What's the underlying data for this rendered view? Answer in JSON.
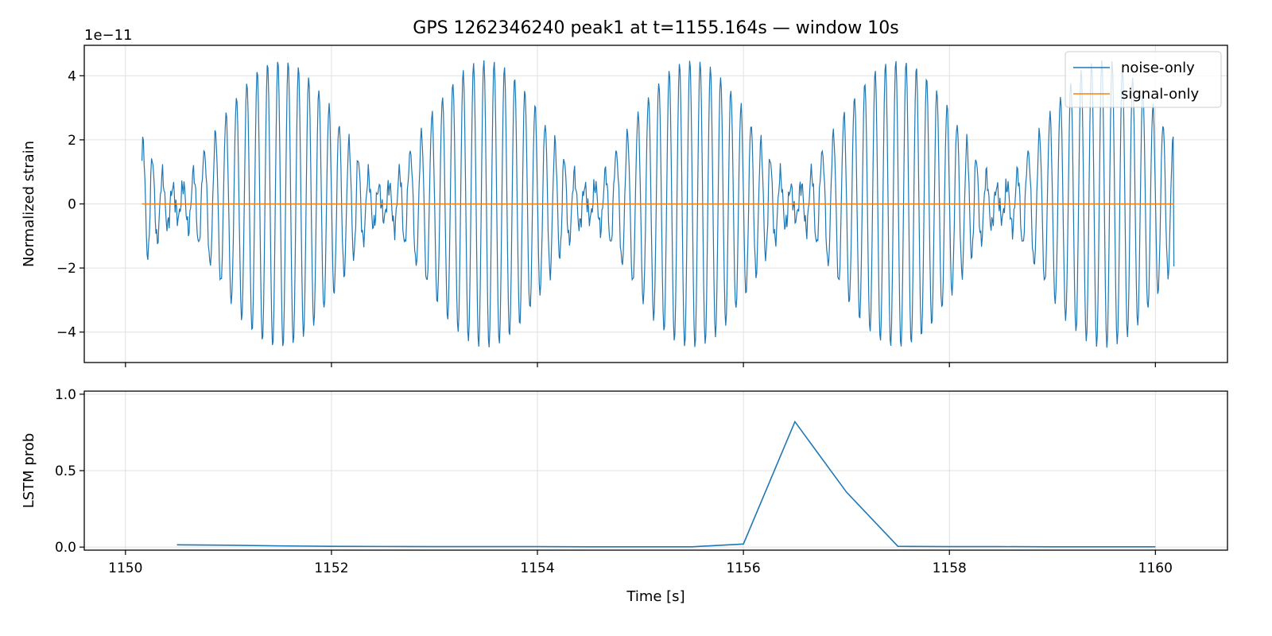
{
  "chart_data": [
    {
      "type": "line",
      "title": "GPS 1262346240 peak1 at t=1155.164s — window 10s",
      "ylabel": "Normalized strain",
      "offset_text": "1e−11",
      "xlim": [
        1149.6,
        1160.7
      ],
      "ylim": [
        -4.95,
        4.95
      ],
      "x_ticks": [
        1150,
        1152,
        1154,
        1156,
        1158,
        1160
      ],
      "y_ticks": [
        -4,
        -2,
        0,
        2,
        4
      ],
      "y_tick_labels": [
        "−4",
        "−2",
        "0",
        "2",
        "4"
      ],
      "grid": true,
      "legend_position": "top-right",
      "series": [
        {
          "name": "noise-only",
          "color": "#1f77b4",
          "x_range": [
            1150.16,
            1160.18
          ],
          "samples": 1400,
          "envelope_peaks": [
            1151.5,
            1153.5,
            1155.5,
            1157.5,
            1159.5
          ],
          "envelope_troughs": [
            1150.5,
            1152.5,
            1154.5,
            1156.5,
            1158.5
          ],
          "max_amplitude": 4.5,
          "carrier_frequency_hz": 10,
          "start_value": 1.5,
          "end_value": -1.95
        },
        {
          "name": "signal-only",
          "color": "#ff7f0e",
          "x": [
            1150.16,
            1160.18
          ],
          "y": [
            0,
            0
          ]
        }
      ]
    },
    {
      "type": "line",
      "xlabel": "Time [s]",
      "ylabel": "LSTM prob",
      "xlim": [
        1149.6,
        1160.7
      ],
      "ylim": [
        -0.02,
        1.02
      ],
      "x_ticks": [
        1150,
        1152,
        1154,
        1156,
        1158,
        1160
      ],
      "x_tick_labels": [
        "1150",
        "1152",
        "1154",
        "1156",
        "1158",
        "1160"
      ],
      "y_ticks": [
        0.0,
        0.5,
        1.0
      ],
      "y_tick_labels": [
        "0.0",
        "0.5",
        "1.0"
      ],
      "grid": true,
      "series": [
        {
          "color": "#1f77b4",
          "x": [
            1150.5,
            1151.0,
            1151.5,
            1152.0,
            1152.5,
            1153.0,
            1153.5,
            1154.0,
            1154.5,
            1155.0,
            1155.5,
            1156.0,
            1156.5,
            1157.0,
            1157.5,
            1158.0,
            1158.5,
            1159.0,
            1159.5,
            1160.0
          ],
          "y": [
            0.015,
            0.012,
            0.008,
            0.005,
            0.004,
            0.003,
            0.003,
            0.003,
            0.002,
            0.002,
            0.002,
            0.02,
            0.82,
            0.36,
            0.005,
            0.003,
            0.003,
            0.002,
            0.002,
            0.002
          ]
        }
      ]
    }
  ]
}
